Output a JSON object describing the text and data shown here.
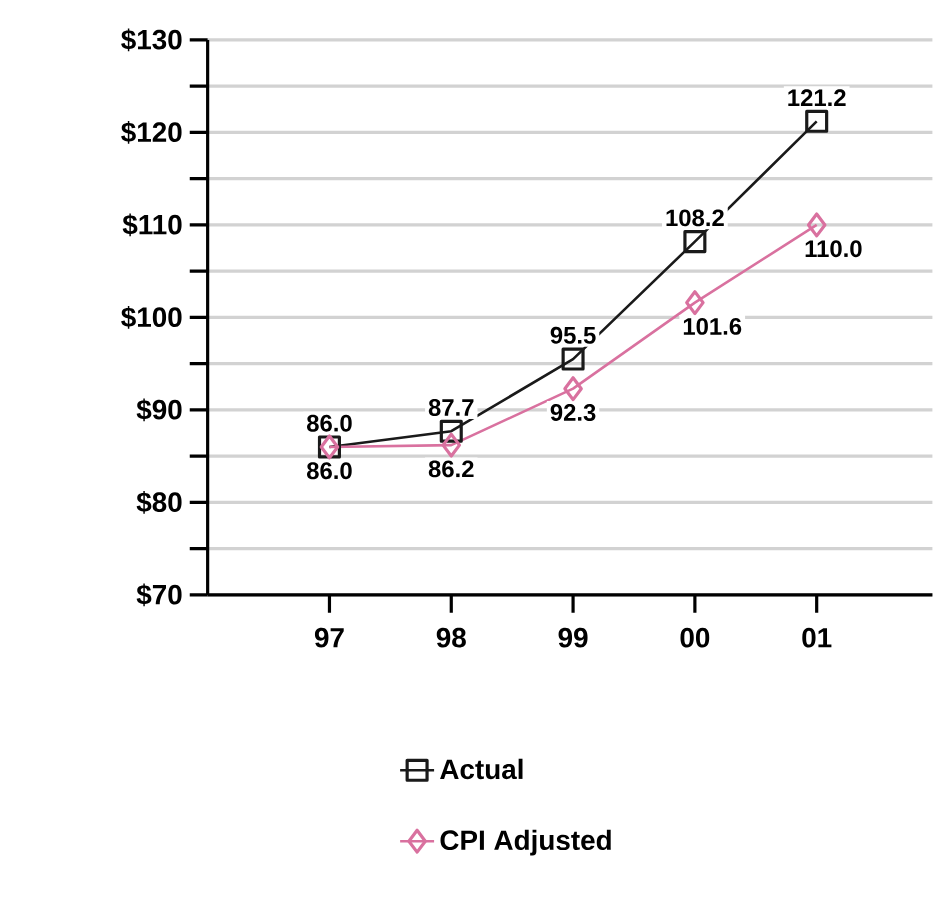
{
  "chart_data": {
    "type": "line",
    "categories": [
      "97",
      "98",
      "99",
      "00",
      "01"
    ],
    "series": [
      {
        "name": "Actual",
        "color": "#1a1a1a",
        "marker": "square",
        "values": [
          86.0,
          87.7,
          95.5,
          108.2,
          121.2
        ],
        "value_labels": [
          "86.0",
          "87.7",
          "95.5",
          "108.2",
          "121.2"
        ]
      },
      {
        "name": "CPI Adjusted",
        "color": "#d9719f",
        "marker": "diamond",
        "values": [
          86.0,
          86.2,
          92.3,
          101.6,
          110.0
        ],
        "value_labels": [
          "86.0",
          "86.2",
          "92.3",
          "101.6",
          "110.0"
        ]
      }
    ],
    "ylim": [
      70,
      130
    ],
    "yticks": [
      {
        "value": 70,
        "label": "$70"
      },
      {
        "value": 75,
        "label": null
      },
      {
        "value": 80,
        "label": "$80"
      },
      {
        "value": 85,
        "label": null
      },
      {
        "value": 90,
        "label": "$90"
      },
      {
        "value": 95,
        "label": null
      },
      {
        "value": 100,
        "label": "$100"
      },
      {
        "value": 105,
        "label": null
      },
      {
        "value": 110,
        "label": "$110"
      },
      {
        "value": 115,
        "label": null
      },
      {
        "value": 120,
        "label": "$120"
      },
      {
        "value": 125,
        "label": null
      },
      {
        "value": 130,
        "label": "$130"
      }
    ],
    "grid": "y",
    "legend": "bottom",
    "line_style": "solid"
  }
}
